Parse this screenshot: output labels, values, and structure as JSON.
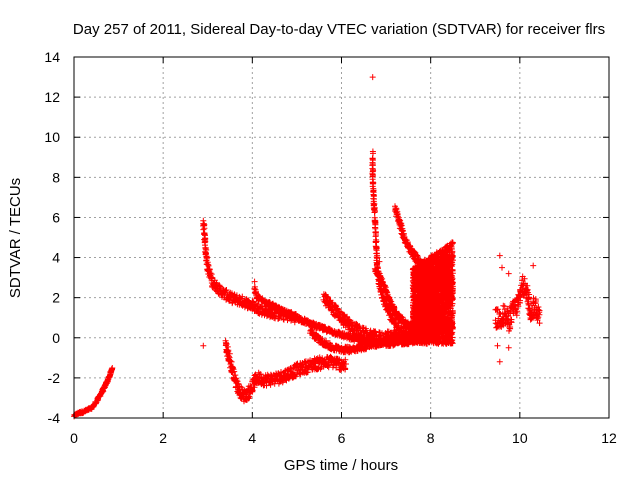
{
  "chart_data": {
    "type": "scatter",
    "title": "Day 257 of 2011, Sidereal Day-to-day VTEC variation (SDTVAR) for receiver flrs",
    "xlabel": "GPS time / hours",
    "ylabel": "SDTVAR / TECUs",
    "xlim": [
      0,
      12
    ],
    "ylim": [
      -4,
      14
    ],
    "x_ticks": [
      "0",
      "2",
      "4",
      "6",
      "8",
      "10",
      "12"
    ],
    "y_ticks": [
      "-4",
      "-2",
      "0",
      "2",
      "4",
      "6",
      "8",
      "10",
      "12",
      "14"
    ],
    "grid": true,
    "marker": "+",
    "color": "#ff0000",
    "segments": [
      {
        "x": [
          0.0,
          0.1,
          0.2,
          0.3,
          0.4,
          0.5,
          0.6,
          0.7,
          0.8,
          0.86
        ],
        "y": [
          -3.9,
          -3.75,
          -3.7,
          -3.6,
          -3.5,
          -3.2,
          -2.8,
          -2.4,
          -1.9,
          -1.5
        ],
        "spread": 0.05
      },
      {
        "x": [
          2.9,
          2.95,
          3.0,
          3.1,
          3.3,
          3.5,
          3.8,
          4.0,
          4.2,
          4.5,
          4.8,
          5.0
        ],
        "y": [
          5.8,
          4.5,
          3.5,
          2.8,
          2.3,
          2.0,
          1.8,
          1.6,
          1.4,
          1.2,
          1.1,
          1.0
        ],
        "spread": 0.25
      },
      {
        "x": [
          3.4,
          3.5,
          3.6,
          3.7,
          3.8,
          3.9,
          4.0,
          4.1,
          4.3,
          4.6,
          5.0,
          5.4,
          5.8,
          6.1
        ],
        "y": [
          -0.3,
          -1.2,
          -2.0,
          -2.6,
          -2.9,
          -2.8,
          -2.4,
          -2.0,
          -2.1,
          -2.0,
          -1.6,
          -1.3,
          -1.2,
          -1.4
        ],
        "spread": 0.3
      },
      {
        "x": [
          4.05,
          4.1,
          4.3,
          4.6,
          5.0,
          5.4,
          5.8,
          6.2,
          6.6,
          7.0,
          7.5,
          8.0
        ],
        "y": [
          2.5,
          2.0,
          1.8,
          1.4,
          1.0,
          0.6,
          0.3,
          0.0,
          -0.2,
          -0.3,
          -0.2,
          0.0
        ],
        "spread": 0.12
      },
      {
        "x": [
          5.6,
          5.8,
          6.0,
          6.2,
          6.4,
          6.6,
          6.8,
          7.0,
          7.3,
          7.6,
          8.0,
          8.4
        ],
        "y": [
          2.0,
          1.5,
          1.0,
          0.6,
          0.3,
          0.1,
          0.0,
          0.0,
          0.2,
          0.5,
          1.0,
          1.5
        ],
        "spread": 0.3
      },
      {
        "x": [
          5.3,
          5.5,
          5.8,
          6.1,
          6.4,
          6.8,
          7.2,
          7.6,
          8.0,
          8.5
        ],
        "y": [
          0.3,
          -0.1,
          -0.5,
          -0.6,
          -0.5,
          -0.3,
          0.0,
          0.2,
          0.4,
          0.6
        ],
        "spread": 0.15
      },
      {
        "x": [
          6.7,
          6.7,
          6.72,
          6.75,
          6.78,
          6.82,
          6.9,
          7.0,
          7.1,
          7.2,
          7.3
        ],
        "y": [
          9.2,
          8.0,
          7.0,
          6.0,
          4.5,
          3.0,
          2.2,
          1.6,
          1.1,
          0.8,
          0.5
        ],
        "spread": 0.2
      },
      {
        "x": [
          6.75,
          6.85,
          6.95,
          7.05,
          7.15,
          7.3,
          7.5,
          7.7,
          7.9
        ],
        "y": [
          3.4,
          3.1,
          2.6,
          2.0,
          1.5,
          1.0,
          0.6,
          0.3,
          0.1
        ],
        "spread": 0.15
      },
      {
        "x": [
          7.2,
          7.4,
          7.6,
          7.8,
          8.0,
          8.2,
          8.4,
          8.5
        ],
        "y": [
          6.5,
          5.0,
          4.2,
          3.6,
          3.2,
          3.0,
          2.9,
          2.8
        ],
        "spread": 0.2
      },
      {
        "x": [
          9.45,
          9.55,
          9.65,
          9.75,
          9.85,
          9.95,
          10.05,
          10.15,
          10.25,
          10.35,
          10.45
        ],
        "y": [
          1.0,
          0.9,
          1.2,
          0.8,
          1.4,
          1.6,
          2.6,
          2.4,
          1.3,
          1.6,
          1.0
        ],
        "spread": 0.5
      }
    ],
    "band": {
      "x": [
        7.6,
        8.5
      ],
      "top": [
        3.5,
        4.8
      ],
      "bottom": [
        -0.3,
        -0.3
      ]
    },
    "outliers": [
      {
        "x": 6.7,
        "y": 13.0
      },
      {
        "x": 2.9,
        "y": -0.4
      },
      {
        "x": 9.55,
        "y": -1.2
      },
      {
        "x": 9.55,
        "y": 4.1
      },
      {
        "x": 10.3,
        "y": 3.6
      },
      {
        "x": 9.75,
        "y": -0.5
      },
      {
        "x": 9.6,
        "y": 3.5
      },
      {
        "x": 9.75,
        "y": 3.2
      },
      {
        "x": 6.85,
        "y": 3.8
      },
      {
        "x": 9.5,
        "y": -0.4
      },
      {
        "x": 4.05,
        "y": 2.8
      }
    ]
  }
}
